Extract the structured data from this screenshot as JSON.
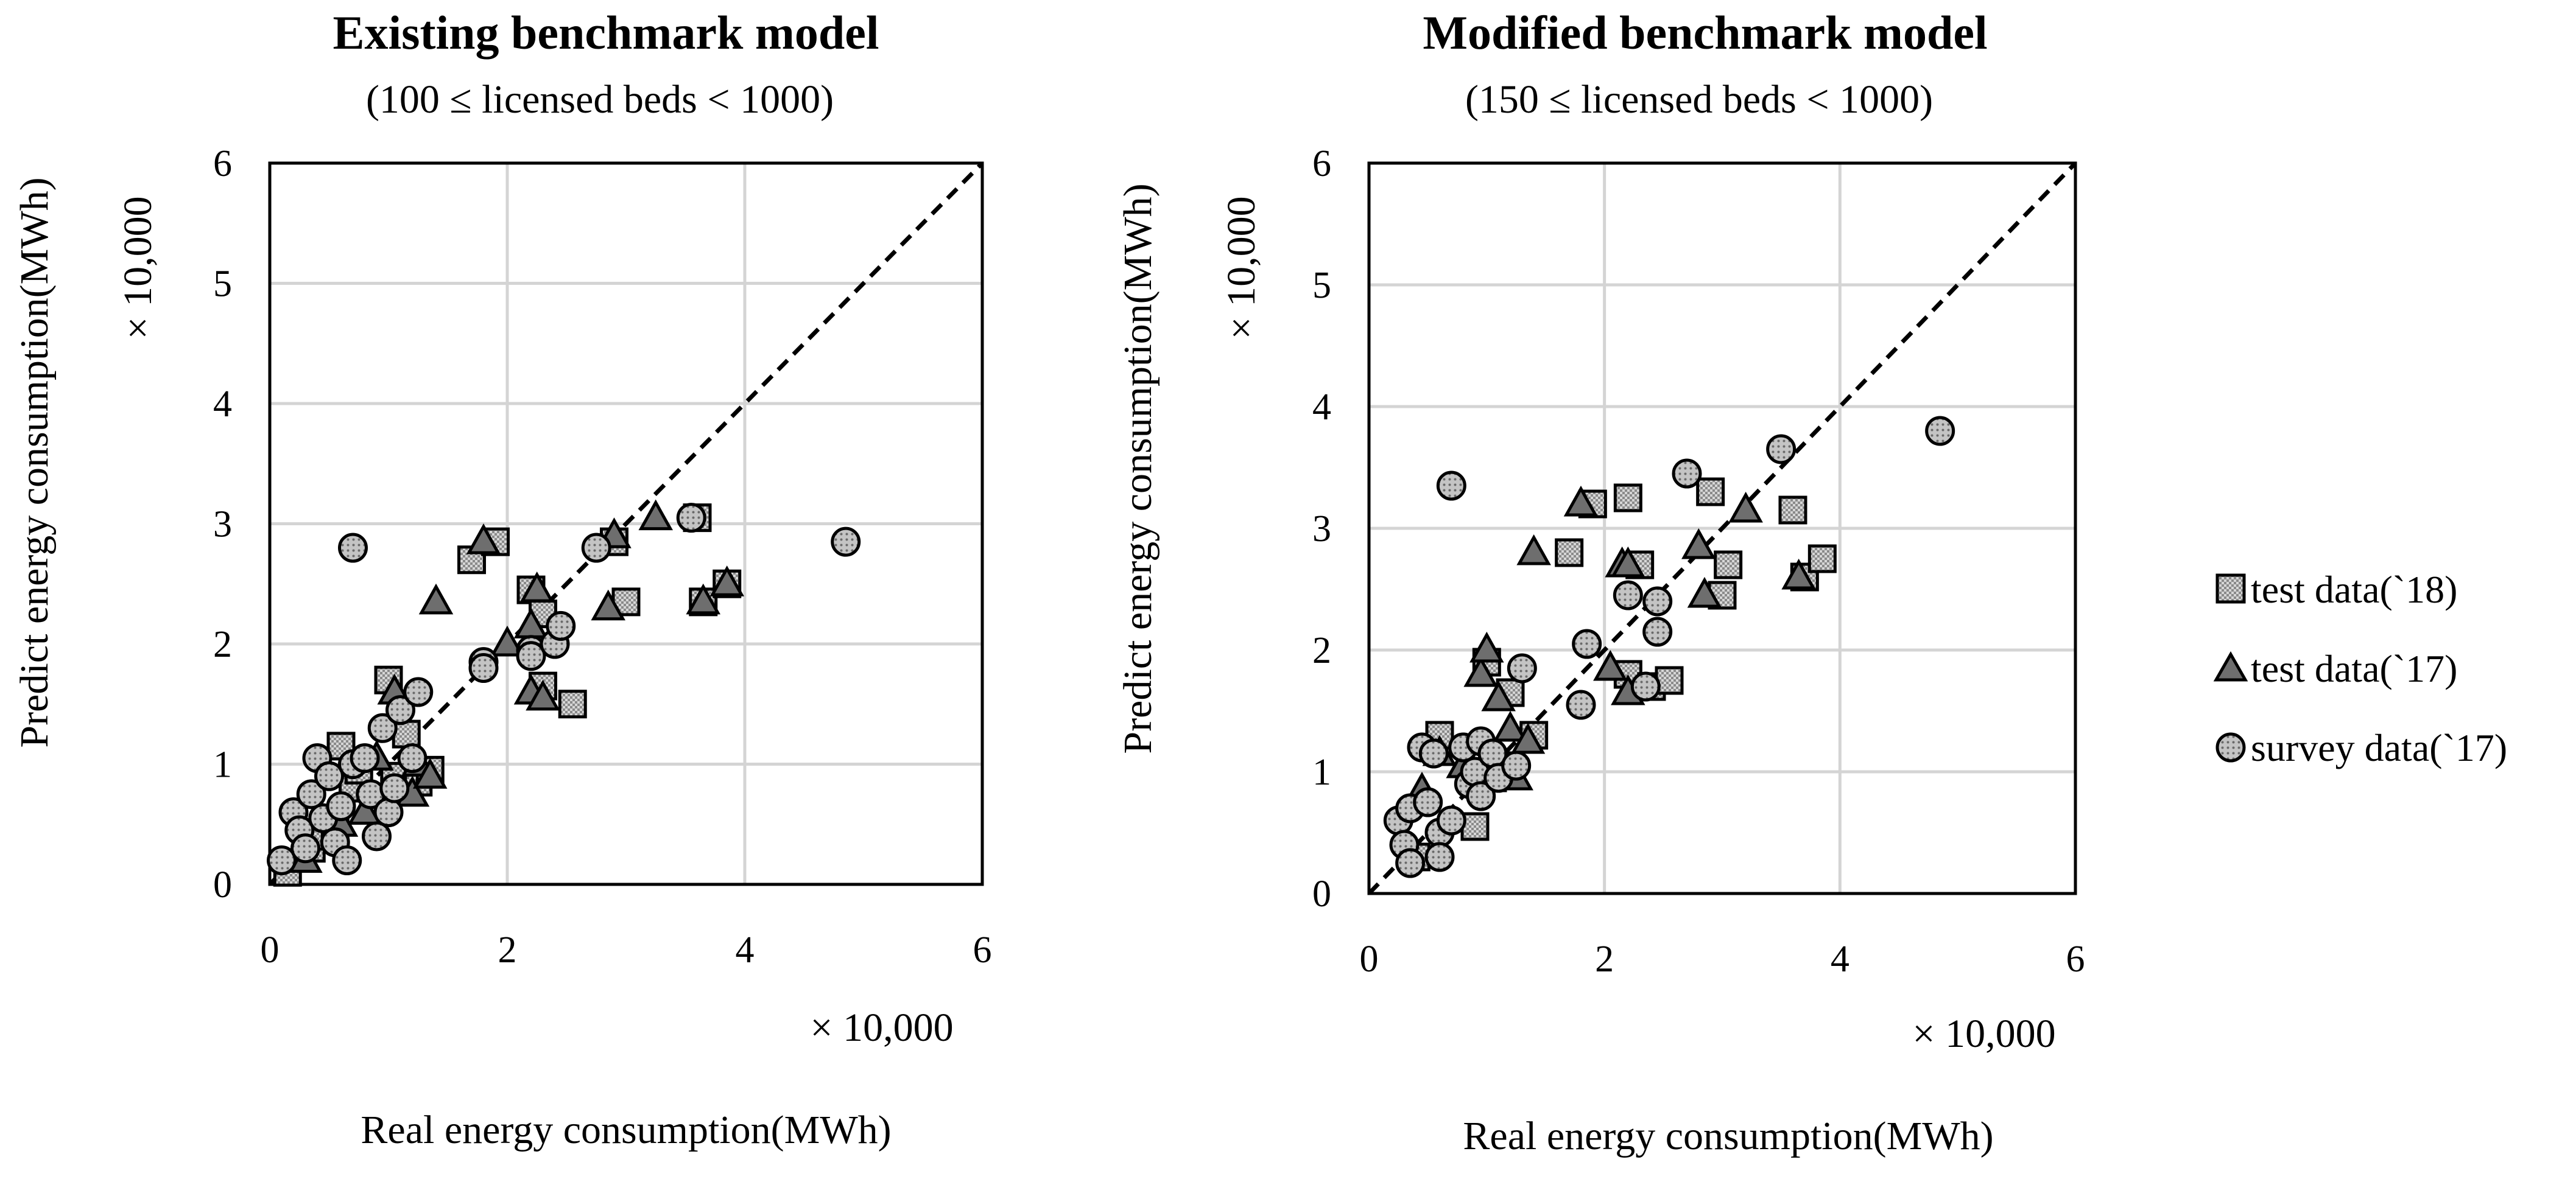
{
  "colors": {
    "marker_fill": "#6e6e6e",
    "hatched_fill": "#c8c8c8",
    "dot_fill": "#b4b4b4",
    "grid": "#d4d4d4",
    "frame": "#000000"
  },
  "legend": {
    "items": [
      {
        "label": "test data(`18)",
        "marker": "square"
      },
      {
        "label": "test data(`17)",
        "marker": "triangle"
      },
      {
        "label": "survey data(`17)",
        "marker": "circle"
      }
    ]
  },
  "chart_data": [
    {
      "type": "scatter",
      "title": "Existing benchmark model",
      "subtitle": "(100 ≤ licensed beds < 1000)",
      "xlabel": "Real energy consumption(MWh)",
      "ylabel": "Predict energy consumption(MWh)",
      "x_multiplier_label": "× 10,000",
      "y_multiplier_label": "× 10,000",
      "xlim": [
        0,
        6
      ],
      "ylim": [
        0,
        6
      ],
      "xticks": [
        "0",
        "2",
        "4",
        "6"
      ],
      "yticks": [
        "0",
        "1",
        "2",
        "3",
        "4",
        "5",
        "6"
      ],
      "grid": true,
      "reference_line": "y = x (dashed)",
      "series": [
        {
          "name": "test data(`18)",
          "points": [
            [
              0.15,
              0.1
            ],
            [
              0.35,
              0.3
            ],
            [
              0.45,
              0.4
            ],
            [
              0.55,
              0.5
            ],
            [
              0.6,
              1.15
            ],
            [
              0.7,
              0.8
            ],
            [
              0.75,
              0.95
            ],
            [
              0.9,
              0.7
            ],
            [
              1.0,
              1.7
            ],
            [
              1.05,
              0.9
            ],
            [
              1.15,
              1.25
            ],
            [
              1.25,
              0.85
            ],
            [
              1.35,
              0.95
            ],
            [
              1.7,
              2.7
            ],
            [
              1.9,
              2.85
            ],
            [
              2.2,
              2.45
            ],
            [
              2.3,
              2.25
            ],
            [
              2.3,
              1.65
            ],
            [
              2.55,
              1.5
            ],
            [
              2.9,
              2.85
            ],
            [
              3.0,
              2.35
            ],
            [
              3.6,
              3.05
            ],
            [
              3.65,
              2.35
            ],
            [
              3.85,
              2.5
            ]
          ]
        },
        {
          "name": "test data(`17)",
          "points": [
            [
              0.3,
              0.2
            ],
            [
              0.6,
              0.5
            ],
            [
              0.8,
              0.6
            ],
            [
              0.9,
              1.05
            ],
            [
              1.05,
              1.6
            ],
            [
              1.2,
              0.75
            ],
            [
              1.25,
              1.0
            ],
            [
              1.35,
              0.9
            ],
            [
              1.4,
              2.35
            ],
            [
              1.8,
              2.85
            ],
            [
              2.0,
              2.0
            ],
            [
              2.2,
              2.15
            ],
            [
              2.2,
              1.6
            ],
            [
              2.25,
              2.45
            ],
            [
              2.3,
              1.55
            ],
            [
              2.85,
              2.3
            ],
            [
              2.9,
              2.9
            ],
            [
              3.25,
              3.05
            ],
            [
              3.65,
              2.35
            ],
            [
              3.85,
              2.5
            ]
          ]
        },
        {
          "name": "survey data(`17)",
          "points": [
            [
              0.1,
              0.2
            ],
            [
              0.2,
              0.6
            ],
            [
              0.25,
              0.45
            ],
            [
              0.3,
              0.3
            ],
            [
              0.35,
              0.75
            ],
            [
              0.4,
              1.05
            ],
            [
              0.45,
              0.55
            ],
            [
              0.5,
              0.9
            ],
            [
              0.55,
              0.35
            ],
            [
              0.6,
              0.65
            ],
            [
              0.65,
              0.2
            ],
            [
              0.7,
              1.0
            ],
            [
              0.7,
              2.8
            ],
            [
              0.8,
              1.05
            ],
            [
              0.85,
              0.75
            ],
            [
              0.9,
              0.4
            ],
            [
              0.95,
              1.3
            ],
            [
              1.0,
              0.6
            ],
            [
              1.05,
              0.8
            ],
            [
              1.1,
              1.45
            ],
            [
              1.2,
              1.05
            ],
            [
              1.25,
              1.6
            ],
            [
              1.8,
              1.85
            ],
            [
              1.8,
              1.8
            ],
            [
              2.2,
              1.95
            ],
            [
              2.2,
              1.9
            ],
            [
              2.4,
              2.0
            ],
            [
              2.45,
              2.15
            ],
            [
              2.75,
              2.8
            ],
            [
              3.55,
              3.05
            ],
            [
              4.85,
              2.85
            ]
          ]
        }
      ]
    },
    {
      "type": "scatter",
      "title": "Modified benchmark model",
      "subtitle": "(150 ≤ licensed beds < 1000)",
      "xlabel": "Real energy consumption(MWh)",
      "ylabel": "Predict energy consumption(MWh)",
      "x_multiplier_label": "× 10,000",
      "y_multiplier_label": "× 10,000",
      "xlim": [
        0,
        6
      ],
      "ylim": [
        0,
        6
      ],
      "xticks": [
        "0",
        "2",
        "4",
        "6"
      ],
      "yticks": [
        "0",
        "1",
        "2",
        "3",
        "4",
        "5",
        "6"
      ],
      "grid": true,
      "reference_line": "y = x (dashed)",
      "series": [
        {
          "name": "test data(`18)",
          "points": [
            [
              0.4,
              0.3
            ],
            [
              0.6,
              1.3
            ],
            [
              0.9,
              0.55
            ],
            [
              1.0,
              1.9
            ],
            [
              1.05,
              0.95
            ],
            [
              1.1,
              1.05
            ],
            [
              1.2,
              1.65
            ],
            [
              1.4,
              1.3
            ],
            [
              1.7,
              2.8
            ],
            [
              1.9,
              3.2
            ],
            [
              2.2,
              3.25
            ],
            [
              2.2,
              1.8
            ],
            [
              2.3,
              2.7
            ],
            [
              2.4,
              1.7
            ],
            [
              2.55,
              1.75
            ],
            [
              2.9,
              3.3
            ],
            [
              3.0,
              2.45
            ],
            [
              3.05,
              2.7
            ],
            [
              3.6,
              3.15
            ],
            [
              3.7,
              2.6
            ],
            [
              3.85,
              2.75
            ]
          ]
        },
        {
          "name": "test data(`17)",
          "points": [
            [
              0.45,
              0.85
            ],
            [
              0.6,
              1.15
            ],
            [
              0.8,
              1.05
            ],
            [
              0.95,
              1.8
            ],
            [
              1.0,
              2.0
            ],
            [
              1.1,
              1.6
            ],
            [
              1.2,
              1.35
            ],
            [
              1.25,
              0.95
            ],
            [
              1.35,
              1.25
            ],
            [
              1.4,
              2.8
            ],
            [
              1.8,
              3.2
            ],
            [
              2.05,
              1.85
            ],
            [
              2.15,
              2.7
            ],
            [
              2.2,
              1.65
            ],
            [
              2.2,
              2.7
            ],
            [
              2.8,
              2.85
            ],
            [
              2.85,
              2.45
            ],
            [
              3.2,
              3.15
            ],
            [
              3.65,
              2.6
            ]
          ]
        },
        {
          "name": "survey data(`17)",
          "points": [
            [
              0.25,
              0.6
            ],
            [
              0.3,
              0.4
            ],
            [
              0.35,
              0.25
            ],
            [
              0.35,
              0.7
            ],
            [
              0.45,
              1.2
            ],
            [
              0.5,
              0.75
            ],
            [
              0.55,
              1.15
            ],
            [
              0.6,
              0.5
            ],
            [
              0.6,
              0.3
            ],
            [
              0.7,
              0.6
            ],
            [
              0.7,
              3.35
            ],
            [
              0.8,
              1.2
            ],
            [
              0.85,
              0.9
            ],
            [
              0.9,
              1.0
            ],
            [
              0.95,
              0.8
            ],
            [
              0.95,
              1.25
            ],
            [
              1.05,
              1.15
            ],
            [
              1.1,
              0.95
            ],
            [
              1.25,
              1.05
            ],
            [
              1.3,
              1.85
            ],
            [
              1.8,
              1.55
            ],
            [
              1.85,
              2.05
            ],
            [
              2.2,
              2.45
            ],
            [
              2.35,
              1.7
            ],
            [
              2.45,
              2.15
            ],
            [
              2.45,
              2.4
            ],
            [
              2.7,
              3.45
            ],
            [
              3.5,
              3.65
            ],
            [
              4.85,
              3.8
            ]
          ]
        }
      ]
    }
  ]
}
